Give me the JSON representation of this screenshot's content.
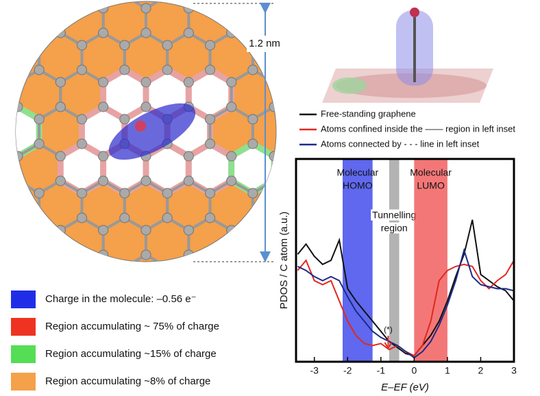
{
  "chart_data": {
    "type": "line",
    "xlabel": "E–EF (eV)",
    "ylabel": "PDOS / C atom (a.u.)",
    "x": [
      -3.5,
      -3.25,
      -3,
      -2.75,
      -2.5,
      -2.25,
      -2,
      -1.75,
      -1.5,
      -1.25,
      -1,
      -0.75,
      -0.5,
      -0.25,
      0,
      0.25,
      0.5,
      0.75,
      1,
      1.25,
      1.5,
      1.75,
      2,
      2.25,
      2.5,
      2.75,
      3
    ],
    "xlim": [
      -3.55,
      3
    ],
    "xticks": [
      -3,
      -2,
      -1,
      0,
      1,
      2,
      3
    ],
    "ylim": [
      0,
      1
    ],
    "series": [
      {
        "name": "Free-standing graphene",
        "color": "#111111",
        "values": [
          0.53,
          0.58,
          0.52,
          0.48,
          0.5,
          0.6,
          0.36,
          0.3,
          0.25,
          0.2,
          0.15,
          0.1,
          0.07,
          0.04,
          0.03,
          0.08,
          0.13,
          0.2,
          0.3,
          0.42,
          0.53,
          0.7,
          0.43,
          0.4,
          0.37,
          0.35,
          0.3
        ]
      },
      {
        "name": "Atoms confined inside the —— region in left inset",
        "color": "#e0281e",
        "values": [
          0.45,
          0.5,
          0.4,
          0.38,
          0.4,
          0.3,
          0.2,
          0.13,
          0.09,
          0.08,
          0.09,
          0.06,
          0.08,
          0.05,
          0.03,
          0.08,
          0.2,
          0.4,
          0.45,
          0.47,
          0.48,
          0.47,
          0.4,
          0.36,
          0.4,
          0.43,
          0.5
        ]
      },
      {
        "name": "Atoms connected by - - - line in left inset",
        "color": "#1c2a8a",
        "values": [
          0.47,
          0.45,
          0.42,
          0.4,
          0.42,
          0.4,
          0.32,
          0.25,
          0.2,
          0.15,
          0.12,
          0.1,
          0.08,
          0.05,
          0.02,
          0.05,
          0.1,
          0.18,
          0.28,
          0.4,
          0.55,
          0.42,
          0.38,
          0.37,
          0.36,
          0.36,
          0.35
        ]
      }
    ],
    "bands": [
      {
        "lines": [
          "Molecular",
          "HOMO"
        ],
        "range": [
          -2.15,
          -1.25
        ],
        "color": "#2a35e8"
      },
      {
        "lines": [
          "Tunnelling",
          "region"
        ],
        "range": [
          -0.75,
          -0.45
        ],
        "color": "#9a9a9a"
      },
      {
        "lines": [
          "Molecular",
          "LUMO"
        ],
        "range": [
          0,
          1
        ],
        "color": "#f04a4a"
      }
    ],
    "annotation": {
      "text": "(*)",
      "x": -0.78,
      "color": "#e0281e"
    }
  },
  "inset": {
    "scale_label": "1.2 nm"
  },
  "legend_left": {
    "items": [
      {
        "label": "Charge in the molecule: –0.56 e⁻",
        "color": "#1f2ee6"
      },
      {
        "label": "Region accumulating ~ 75% of charge",
        "color": "#ee3322"
      },
      {
        "label": "Region accumulating ~15% of charge",
        "color": "#55dd55"
      },
      {
        "label": "Region accumulating ~8% of charge",
        "color": "#f5a04a"
      }
    ]
  }
}
